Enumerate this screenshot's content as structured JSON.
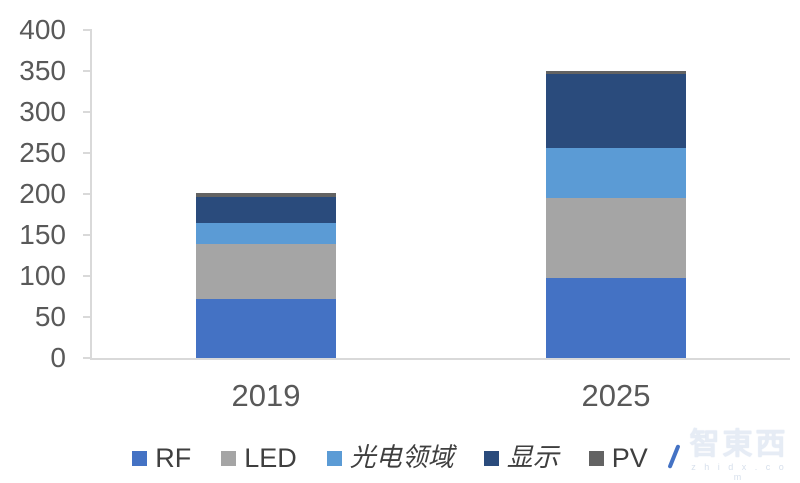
{
  "chart_data": {
    "type": "bar",
    "variant": "stacked-column",
    "categories": [
      "2019",
      "2025"
    ],
    "series": [
      {
        "name": "RF",
        "color": "#4472C4",
        "values": [
          72,
          97
        ]
      },
      {
        "name": "LED",
        "color": "#A5A5A5",
        "values": [
          67,
          98
        ]
      },
      {
        "name": "光电领域",
        "color": "#5B9BD5",
        "values": [
          26,
          61
        ]
      },
      {
        "name": "显示",
        "color": "#2A4B7C",
        "values": [
          31,
          90
        ]
      },
      {
        "name": "PV",
        "color": "#636363",
        "values": [
          5,
          4
        ]
      }
    ],
    "stacked_totals": [
      201,
      350
    ],
    "title": "",
    "xlabel": "",
    "ylabel": "",
    "ylim": [
      0,
      400
    ],
    "yticks": [
      0,
      50,
      100,
      150,
      200,
      250,
      300,
      350,
      400
    ],
    "grid": false,
    "legend_position": "bottom",
    "axis_color": "#D9D9D9",
    "label_color": "#595959"
  },
  "watermark": {
    "logo_text": "智東西",
    "url_text": "z h i d x . c o m"
  }
}
